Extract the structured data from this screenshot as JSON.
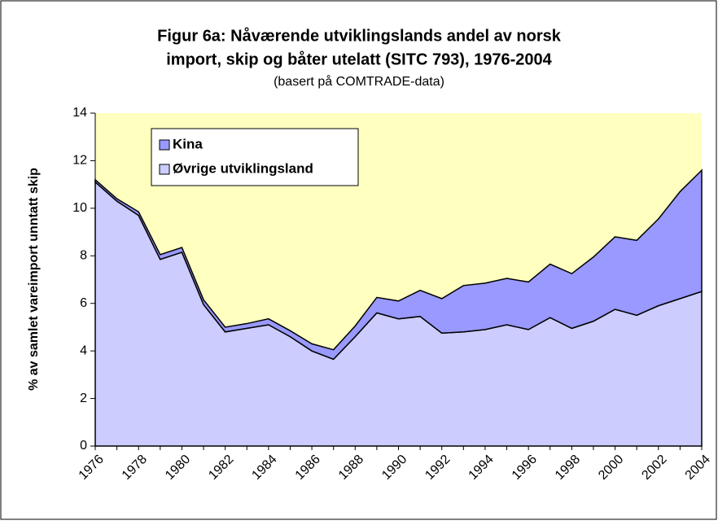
{
  "chart_data": {
    "type": "stacked_area",
    "title": [
      "Figur  6a: Nåværende utviklingslands andel av norsk",
      "import, skip og båter utelatt (SITC 793), 1976-2004"
    ],
    "subtitle": "(basert på COMTRADE-data)",
    "y_label": "% av samlet vareimport unntatt skip",
    "x": [
      1976,
      1977,
      1978,
      1979,
      1980,
      1981,
      1982,
      1983,
      1984,
      1985,
      1986,
      1987,
      1988,
      1989,
      1990,
      1991,
      1992,
      1993,
      1994,
      1995,
      1996,
      1997,
      1998,
      1999,
      2000,
      2001,
      2002,
      2003,
      2004
    ],
    "xlim": [
      1976,
      2004
    ],
    "xticks": [
      1976,
      1978,
      1980,
      1982,
      1984,
      1986,
      1988,
      1990,
      1992,
      1994,
      1996,
      1998,
      2000,
      2002,
      2004
    ],
    "ylim": [
      0,
      14
    ],
    "yticks": [
      0,
      2,
      4,
      6,
      8,
      10,
      12,
      14
    ],
    "plot_background": "#ffffc0",
    "series": [
      {
        "name": "Øvrige utviklingsland",
        "color": "#ccccff",
        "values": [
          11.1,
          10.3,
          9.7,
          7.85,
          8.15,
          5.95,
          4.8,
          4.95,
          5.1,
          4.6,
          4.0,
          3.65,
          4.6,
          5.6,
          5.35,
          5.45,
          4.75,
          4.8,
          4.9,
          5.1,
          4.9,
          5.4,
          4.95,
          5.25,
          5.75,
          5.5,
          5.9,
          6.2,
          6.5
        ]
      },
      {
        "name": "Kina",
        "color": "#9999ff",
        "values": [
          0.1,
          0.1,
          0.15,
          0.2,
          0.2,
          0.2,
          0.2,
          0.2,
          0.25,
          0.25,
          0.3,
          0.4,
          0.45,
          0.65,
          0.75,
          1.1,
          1.45,
          1.95,
          1.95,
          1.95,
          2.0,
          2.25,
          2.3,
          2.7,
          3.05,
          3.15,
          3.65,
          4.5,
          5.1
        ]
      }
    ]
  }
}
